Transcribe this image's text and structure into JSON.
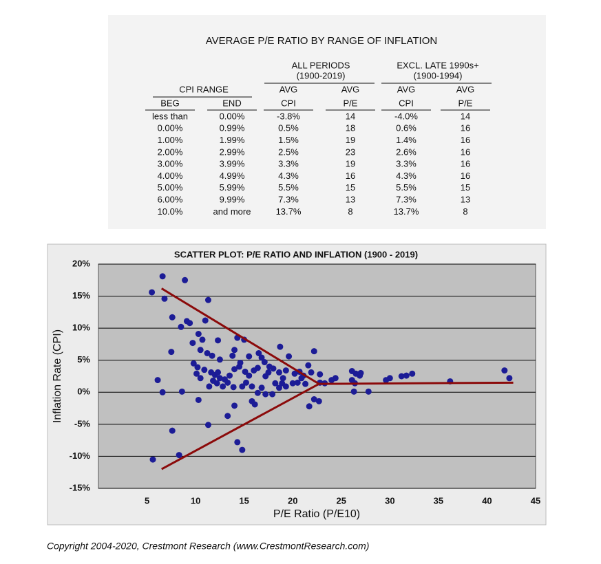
{
  "table": {
    "title": "AVERAGE P/E RATIO BY RANGE OF INFLATION",
    "group_headers": [
      {
        "label": "ALL PERIODS",
        "period": "(1900-2019)"
      },
      {
        "label": "EXCL. LATE 1990s+",
        "period": "(1900-1994)"
      }
    ],
    "range_header": "CPI RANGE",
    "header_top": [
      "AVG",
      "AVG",
      "AVG",
      "AVG"
    ],
    "columns": [
      "BEG",
      "END",
      "CPI",
      "P/E",
      "CPI",
      "P/E"
    ],
    "rows": [
      [
        "less than",
        "0.00%",
        "-3.8%",
        "14",
        "-4.0%",
        "14"
      ],
      [
        "0.00%",
        "0.99%",
        "0.5%",
        "18",
        "0.6%",
        "16"
      ],
      [
        "1.00%",
        "1.99%",
        "1.5%",
        "19",
        "1.4%",
        "16"
      ],
      [
        "2.00%",
        "2.99%",
        "2.5%",
        "23",
        "2.6%",
        "16"
      ],
      [
        "3.00%",
        "3.99%",
        "3.3%",
        "19",
        "3.3%",
        "16"
      ],
      [
        "4.00%",
        "4.99%",
        "4.3%",
        "16",
        "4.3%",
        "16"
      ],
      [
        "5.00%",
        "5.99%",
        "5.5%",
        "15",
        "5.5%",
        "15"
      ],
      [
        "6.00%",
        "9.99%",
        "7.3%",
        "13",
        "7.3%",
        "13"
      ],
      [
        "10.0%",
        "and more",
        "13.7%",
        "8",
        "13.7%",
        "8"
      ]
    ]
  },
  "chart_data": {
    "type": "scatter",
    "title": "SCATTER PLOT: P/E RATIO AND INFLATION (1900 - 2019)",
    "x_label": "P/E Ratio (P/E10)",
    "y_label": "Inflation Rate (CPI)",
    "xlim": [
      0,
      45
    ],
    "ylim": [
      -15,
      20
    ],
    "xticks": [
      5,
      10,
      15,
      20,
      25,
      30,
      35,
      40,
      45
    ],
    "yticks": [
      {
        "value": 20,
        "label": "20%"
      },
      {
        "value": 15,
        "label": "15%"
      },
      {
        "value": 10,
        "label": "10%"
      },
      {
        "value": 5,
        "label": "5%"
      },
      {
        "value": 0,
        "label": "0%"
      },
      {
        "value": -5,
        "label": "-5%"
      },
      {
        "value": -10,
        "label": "-10%"
      },
      {
        "value": -15,
        "label": "-15%"
      }
    ],
    "grid": true,
    "color": "#1c1c96",
    "x": [
      5.5,
      6.6,
      6.8,
      8.9,
      11.3,
      5.6,
      7.6,
      8.5,
      9.1,
      9.4,
      11.0,
      10.3,
      10.7,
      9.7,
      12.3,
      14.3,
      15.0,
      7.5,
      10.5,
      11.2,
      11.7,
      12.5,
      13.8,
      14.0,
      15.5,
      16.5,
      16.8,
      17.1,
      17.6,
      18.7,
      19.6,
      22.2,
      9.8,
      10.2,
      10.9,
      10.1,
      10.5,
      11.6,
      12.0,
      12.3,
      12.5,
      13.0,
      13.5,
      14.0,
      14.5,
      14.6,
      15.1,
      15.5,
      16.0,
      16.4,
      17.2,
      17.5,
      18.0,
      18.6,
      19.0,
      19.3,
      20.2,
      20.7,
      21.1,
      21.6,
      21.9,
      11.4,
      11.8,
      12.2,
      12.8,
      13.3,
      13.9,
      14.8,
      15.2,
      15.8,
      16.4,
      16.8,
      17.2,
      17.9,
      18.2,
      18.6,
      18.9,
      19.3,
      20.0,
      20.5,
      20.9,
      21.3,
      22.8,
      23.3,
      24.0,
      24.4,
      22.8,
      26.1,
      26.4,
      26.1,
      26.5,
      27.0,
      26.9,
      26.3,
      27.8,
      29.6,
      30.0,
      31.2,
      31.7,
      32.3,
      36.2,
      41.8,
      42.3,
      6.1,
      6.6,
      10.3,
      15.8,
      16.1,
      14.0,
      22.2,
      21.7,
      22.7,
      11.3,
      13.3,
      7.6,
      8.3,
      14.3,
      14.8,
      8.6
    ],
    "values": [
      15.6,
      18.1,
      14.6,
      17.5,
      14.4,
      -10.5,
      11.7,
      10.2,
      11.1,
      10.8,
      11.2,
      9.1,
      8.2,
      7.7,
      8.1,
      8.5,
      8.2,
      6.3,
      6.6,
      6.1,
      5.7,
      5.1,
      5.7,
      6.6,
      5.6,
      6.1,
      5.4,
      4.7,
      4.0,
      7.1,
      5.6,
      6.4,
      4.5,
      3.9,
      3.5,
      2.9,
      2.2,
      3.1,
      2.7,
      3.1,
      2.2,
      2.0,
      2.6,
      3.6,
      4.0,
      4.6,
      3.2,
      2.6,
      3.4,
      3.8,
      2.5,
      3.1,
      3.7,
      3.1,
      2.2,
      3.4,
      2.9,
      3.2,
      2.6,
      4.2,
      3.1,
      0.9,
      1.8,
      1.4,
      0.9,
      1.5,
      0.8,
      0.9,
      1.5,
      0.9,
      -0.1,
      0.7,
      -0.3,
      -0.3,
      1.4,
      0.7,
      1.4,
      0.9,
      1.4,
      1.5,
      2.2,
      1.3,
      1.5,
      1.4,
      1.9,
      2.2,
      2.8,
      1.9,
      1.4,
      3.3,
      2.9,
      3.0,
      2.6,
      0.1,
      0.1,
      1.9,
      2.2,
      2.5,
      2.6,
      2.9,
      1.7,
      3.4,
      2.2,
      1.9,
      0.0,
      -1.2,
      -1.4,
      -1.9,
      -2.1,
      -1.1,
      -2.2,
      -1.4,
      -5.1,
      -3.7,
      -6.0,
      -9.8,
      -7.8,
      -9.0,
      0.1
    ],
    "trend_lines": [
      {
        "color": "#8b0a0a",
        "x": [
          6.5,
          22.7,
          42.7
        ],
        "y": [
          16.2,
          1.3,
          1.5
        ]
      },
      {
        "color": "#8b0a0a",
        "x": [
          6.5,
          22.7
        ],
        "y": [
          -12.0,
          1.3
        ]
      }
    ]
  },
  "footer": {
    "copyright": "Copyright 2004-2020, Crestmont Research (www.CrestmontResearch.com)"
  }
}
